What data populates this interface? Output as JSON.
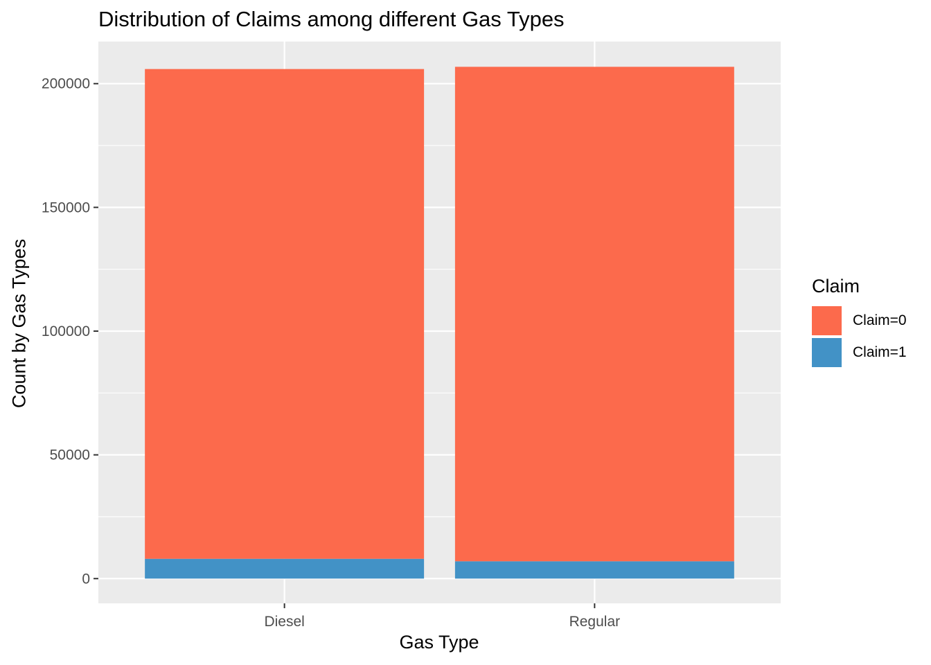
{
  "chart_data": {
    "type": "bar",
    "stacked": true,
    "title": "Distribution of Claims among different Gas Types",
    "xlabel": "Gas Type",
    "ylabel": "Count by Gas Types",
    "categories": [
      "Diesel",
      "Regular"
    ],
    "series": [
      {
        "name": "Claim=0",
        "values": [
          197900,
          199800
        ],
        "color": "#FC6A4C"
      },
      {
        "name": "Claim=1",
        "values": [
          8000,
          7000
        ],
        "color": "#4292C6"
      }
    ],
    "yticks": [
      0,
      50000,
      100000,
      150000,
      200000
    ],
    "ylim": [
      -10000,
      217000
    ],
    "legend": {
      "title": "Claim",
      "position": "right"
    },
    "grid": true,
    "panel_background": "#EBEBEB"
  }
}
